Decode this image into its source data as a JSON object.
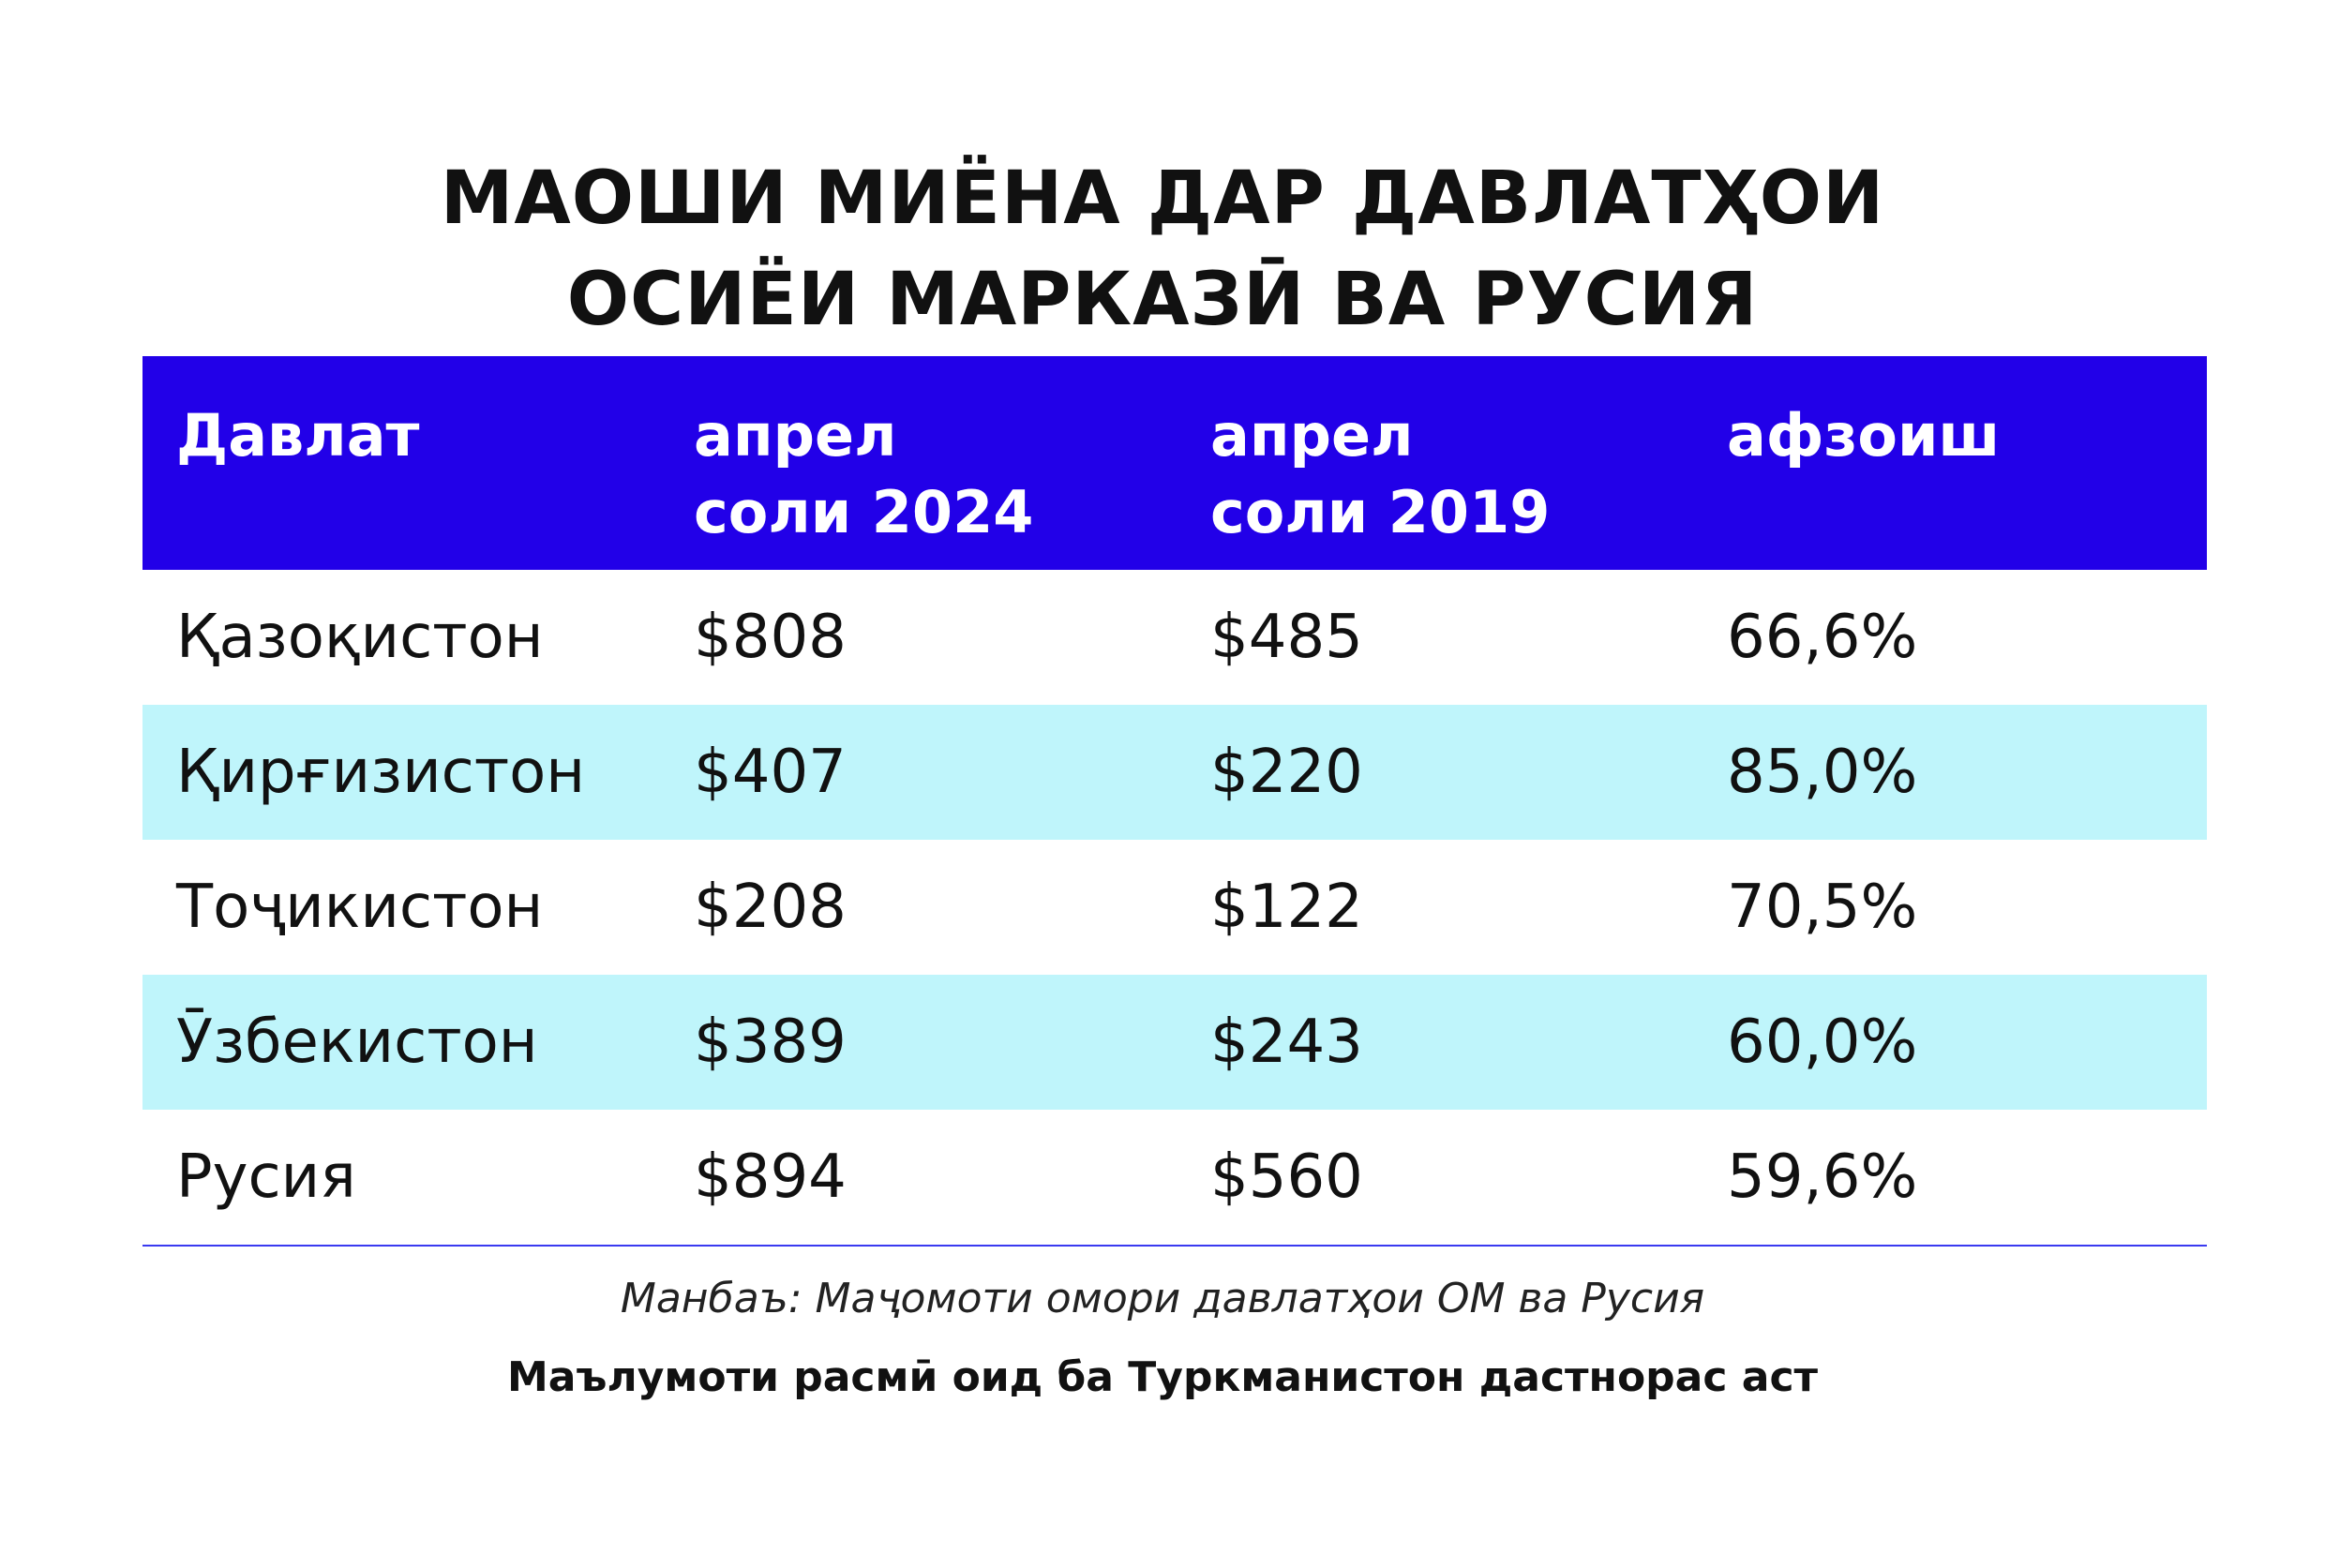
{
  "title_lines": [
    "МАОШИ МИЁНА ДАР ДАВЛАТҲОИ",
    "ОСИЁИ МАРКАЗӢ ВА РУСИЯ"
  ],
  "colors": {
    "header_bg": "#2200e8",
    "header_text": "#ffffff",
    "stripe_bg": "#bff5fb",
    "rule": "#3a3af0"
  },
  "chart_data": {
    "type": "table",
    "columns": [
      {
        "lines": [
          "Давлат"
        ]
      },
      {
        "lines": [
          "апрел",
          "соли 2024"
        ]
      },
      {
        "lines": [
          "апрел",
          "соли 2019"
        ]
      },
      {
        "lines": [
          "афзоиш"
        ]
      }
    ],
    "rows": [
      [
        "Қазоқистон",
        "$808",
        "$485",
        "66,6%"
      ],
      [
        "Қирғизистон",
        "$407",
        "$220",
        "85,0%"
      ],
      [
        "Тоҷикистон",
        "$208",
        "$122",
        "70,5%"
      ],
      [
        "Ӯзбекистон",
        "$389",
        "$243",
        "60,0%"
      ],
      [
        "Русия",
        "$894",
        "$560",
        "59,6%"
      ]
    ],
    "striped_rows": [
      false,
      true,
      false,
      true,
      false
    ]
  },
  "source": "Манбаъ: Маҷомоти омори давлатҳои ОМ ва Русия",
  "note": "Маълумоти расмӣ оид ба Туркманистон дастнорас аст"
}
